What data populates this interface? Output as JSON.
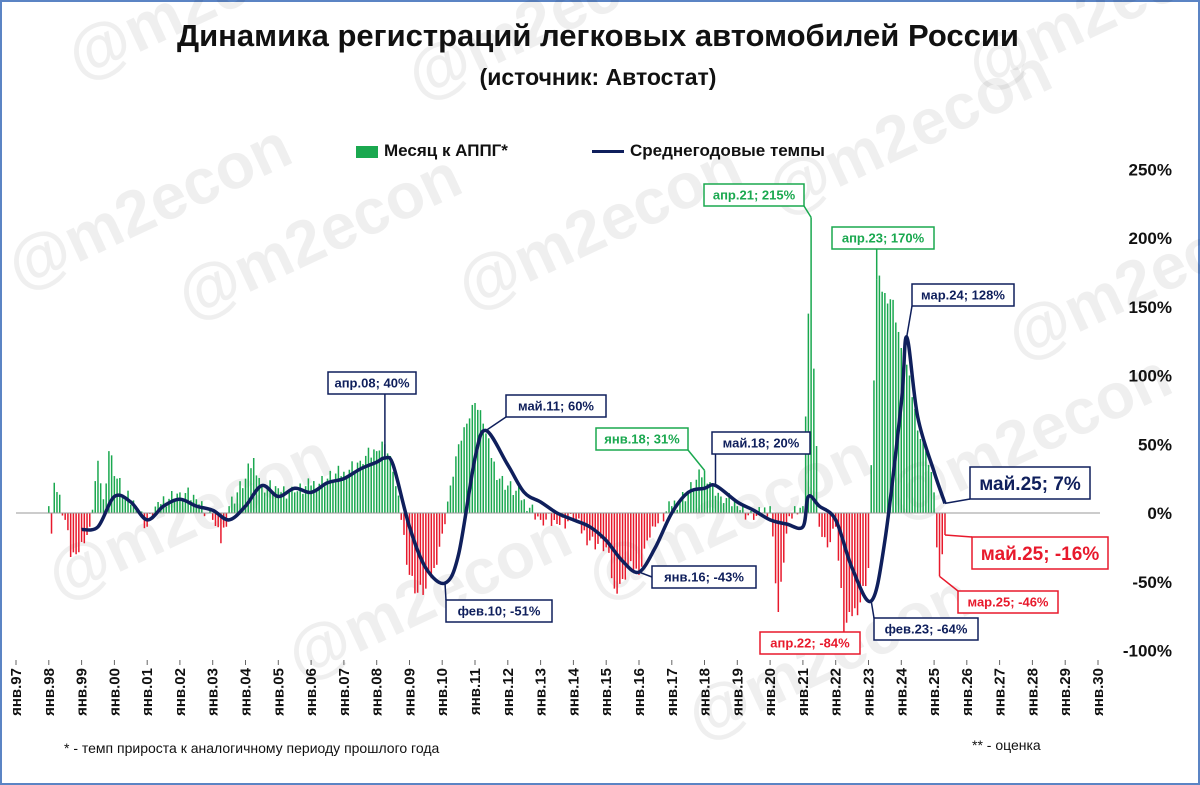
{
  "header": {
    "title": "Динамика регистраций легковых автомобилей России",
    "subtitle": "(источник: Автостат)"
  },
  "legend": {
    "bars": "Месяц к АППГ*",
    "line": "Среднегодовые темпы"
  },
  "footnotes": {
    "left": "* - темп прироста к аналогичному периоду прошлого года",
    "right": "** - оценка"
  },
  "watermark": "@m2econ",
  "colors": {
    "positive": "#1aa84f",
    "negative": "#e8192c",
    "line": "#0f1f5c",
    "frame": "#5b84c4"
  },
  "chart_data": {
    "type": "bar",
    "x_start": "янв.97",
    "x_end": "май.25",
    "y_unit": "%",
    "ylim": [
      -100,
      250
    ],
    "y_ticks": [
      -100,
      -50,
      0,
      50,
      100,
      150,
      200,
      250
    ],
    "y_tick_labels": [
      "-100%",
      "-50%",
      "0%",
      "50%",
      "100%",
      "150%",
      "200%",
      "250%"
    ],
    "x_tick_labels": [
      "янв.97",
      "янв.98",
      "янв.99",
      "янв.00",
      "янв.01",
      "янв.02",
      "янв.03",
      "янв.04",
      "янв.05",
      "янв.06",
      "янв.07",
      "янв.08",
      "янв.09",
      "янв.10",
      "янв.11",
      "янв.12",
      "янв.13",
      "янв.14",
      "янв.15",
      "янв.16",
      "янв.17",
      "янв.18",
      "янв.19",
      "янв.20",
      "янв.21",
      "янв.22",
      "янв.23",
      "янв.24",
      "янв.25",
      "янв.26",
      "янв.27",
      "янв.28",
      "янв.29",
      "янв.30"
    ],
    "bars_monthly_keypoints": [
      [
        "янв.98",
        5
      ],
      [
        "фев.98",
        -15
      ],
      [
        "мар.98",
        22
      ],
      [
        "июл.98",
        -5
      ],
      [
        "сен.98",
        -32
      ],
      [
        "ноя.98",
        -30
      ],
      [
        "фев.99",
        -22
      ],
      [
        "апр.99",
        -10
      ],
      [
        "июл.99",
        38
      ],
      [
        "сен.99",
        10
      ],
      [
        "ноя.99",
        45
      ],
      [
        "фев.00",
        25
      ],
      [
        "май.00",
        12
      ],
      [
        "сен.00",
        5
      ],
      [
        "янв.01",
        -10
      ],
      [
        "май.01",
        8
      ],
      [
        "янв.02",
        15
      ],
      [
        "июл.02",
        10
      ],
      [
        "янв.03",
        -5
      ],
      [
        "апр.03",
        -22
      ],
      [
        "июл.03",
        5
      ],
      [
        "янв.04",
        25
      ],
      [
        "апр.04",
        40
      ],
      [
        "июл.04",
        20
      ],
      [
        "янв.05",
        18
      ],
      [
        "июл.05",
        15
      ],
      [
        "янв.06",
        20
      ],
      [
        "июл.06",
        25
      ],
      [
        "янв.07",
        30
      ],
      [
        "июл.07",
        38
      ],
      [
        "янв.08",
        45
      ],
      [
        "апр.08",
        50
      ],
      [
        "июл.08",
        30
      ],
      [
        "окт.08",
        -5
      ],
      [
        "янв.09",
        -45
      ],
      [
        "апр.09",
        -58
      ],
      [
        "июл.09",
        -55
      ],
      [
        "окт.09",
        -40
      ],
      [
        "янв.10",
        -15
      ],
      [
        "апр.10",
        20
      ],
      [
        "июл.10",
        50
      ],
      [
        "окт.10",
        65
      ],
      [
        "янв.11",
        80
      ],
      [
        "апр.11",
        65
      ],
      [
        "июл.11",
        40
      ],
      [
        "окт.11",
        25
      ],
      [
        "янв.12",
        20
      ],
      [
        "июл.12",
        10
      ],
      [
        "янв.13",
        -5
      ],
      [
        "июл.13",
        -8
      ],
      [
        "янв.14",
        -5
      ],
      [
        "июл.14",
        -20
      ],
      [
        "янв.15",
        -25
      ],
      [
        "апр.15",
        -55
      ],
      [
        "июл.15",
        -48
      ],
      [
        "окт.15",
        -35
      ],
      [
        "янв.16",
        -45
      ],
      [
        "апр.16",
        -20
      ],
      [
        "июл.16",
        -10
      ],
      [
        "янв.17",
        5
      ],
      [
        "июл.17",
        15
      ],
      [
        "янв.18",
        31
      ],
      [
        "апр.18",
        20
      ],
      [
        "июл.18",
        12
      ],
      [
        "янв.19",
        5
      ],
      [
        "июл.19",
        -5
      ],
      [
        "янв.20",
        5
      ],
      [
        "апр.20",
        -72
      ],
      [
        "май.20",
        -50
      ],
      [
        "июл.20",
        -15
      ],
      [
        "окт.20",
        5
      ],
      [
        "янв.21",
        5
      ],
      [
        "апр.21",
        215
      ],
      [
        "май.21",
        105
      ],
      [
        "июл.21",
        -10
      ],
      [
        "окт.21",
        -25
      ],
      [
        "янв.22",
        -10
      ],
      [
        "апр.22",
        -84
      ],
      [
        "июл.22",
        -75
      ],
      [
        "окт.22",
        -65
      ],
      [
        "янв.23",
        -40
      ],
      [
        "апр.23",
        170
      ],
      [
        "июл.23",
        160
      ],
      [
        "окт.23",
        155
      ],
      [
        "янв.24",
        120
      ],
      [
        "апр.24",
        100
      ],
      [
        "июл.24",
        60
      ],
      [
        "окт.24",
        45
      ],
      [
        "янв.25",
        15
      ],
      [
        "фев.25",
        -25
      ],
      [
        "мар.25",
        -46
      ],
      [
        "апр.25",
        -30
      ],
      [
        "май.25",
        -16
      ]
    ],
    "line_keypoints": [
      [
        "янв.99",
        -12
      ],
      [
        "июл.99",
        -10
      ],
      [
        "янв.00",
        12
      ],
      [
        "июл.00",
        8
      ],
      [
        "янв.01",
        -5
      ],
      [
        "июл.01",
        5
      ],
      [
        "янв.02",
        10
      ],
      [
        "июл.02",
        5
      ],
      [
        "янв.03",
        2
      ],
      [
        "июл.03",
        -5
      ],
      [
        "янв.04",
        5
      ],
      [
        "июл.04",
        20
      ],
      [
        "янв.05",
        12
      ],
      [
        "июл.05",
        18
      ],
      [
        "янв.06",
        15
      ],
      [
        "июл.06",
        22
      ],
      [
        "янв.07",
        25
      ],
      [
        "июл.07",
        32
      ],
      [
        "янв.08",
        37
      ],
      [
        "апр.08",
        40
      ],
      [
        "июл.08",
        35
      ],
      [
        "янв.09",
        -10
      ],
      [
        "июл.09",
        -40
      ],
      [
        "фев.10",
        -51
      ],
      [
        "июл.10",
        -30
      ],
      [
        "янв.11",
        40
      ],
      [
        "май.11",
        60
      ],
      [
        "янв.12",
        35
      ],
      [
        "июл.12",
        15
      ],
      [
        "янв.13",
        8
      ],
      [
        "июл.13",
        0
      ],
      [
        "янв.14",
        -5
      ],
      [
        "июл.14",
        -10
      ],
      [
        "янв.15",
        -20
      ],
      [
        "июл.15",
        -35
      ],
      [
        "янв.16",
        -43
      ],
      [
        "июл.16",
        -25
      ],
      [
        "янв.17",
        0
      ],
      [
        "июл.17",
        15
      ],
      [
        "янв.18",
        18
      ],
      [
        "май.18",
        20
      ],
      [
        "янв.19",
        8
      ],
      [
        "июл.19",
        2
      ],
      [
        "янв.20",
        -5
      ],
      [
        "июл.20",
        -8
      ],
      [
        "янв.21",
        -10
      ],
      [
        "мар.21",
        12
      ],
      [
        "июл.21",
        5
      ],
      [
        "янв.22",
        -5
      ],
      [
        "июл.22",
        -40
      ],
      [
        "фев.23",
        -64
      ],
      [
        "июл.23",
        -20
      ],
      [
        "янв.24",
        80
      ],
      [
        "мар.24",
        128
      ],
      [
        "июл.24",
        70
      ],
      [
        "янв.25",
        30
      ],
      [
        "май.25",
        7
      ]
    ],
    "annotations": [
      {
        "text": "апр.08; 40%",
        "series": "line"
      },
      {
        "text": "май.11; 60%",
        "series": "line"
      },
      {
        "text": "фев.10; -51%",
        "series": "line"
      },
      {
        "text": "янв.18; 31%",
        "series": "bars"
      },
      {
        "text": "май.18; 20%",
        "series": "line"
      },
      {
        "text": "янв.16; -43%",
        "series": "line"
      },
      {
        "text": "апр.21; 215%",
        "series": "bars"
      },
      {
        "text": "апр.23; 170%",
        "series": "bars"
      },
      {
        "text": "мар.24; 128%",
        "series": "line"
      },
      {
        "text": "май.25; 7%",
        "series": "line"
      },
      {
        "text": "май.25; -16%",
        "series": "bars"
      },
      {
        "text": "мар.25; -46%",
        "series": "bars"
      },
      {
        "text": "апр.22; -84%",
        "series": "bars"
      },
      {
        "text": "фев.23; -64%",
        "series": "line"
      }
    ],
    "legend_position": "top-center",
    "grid": false
  }
}
